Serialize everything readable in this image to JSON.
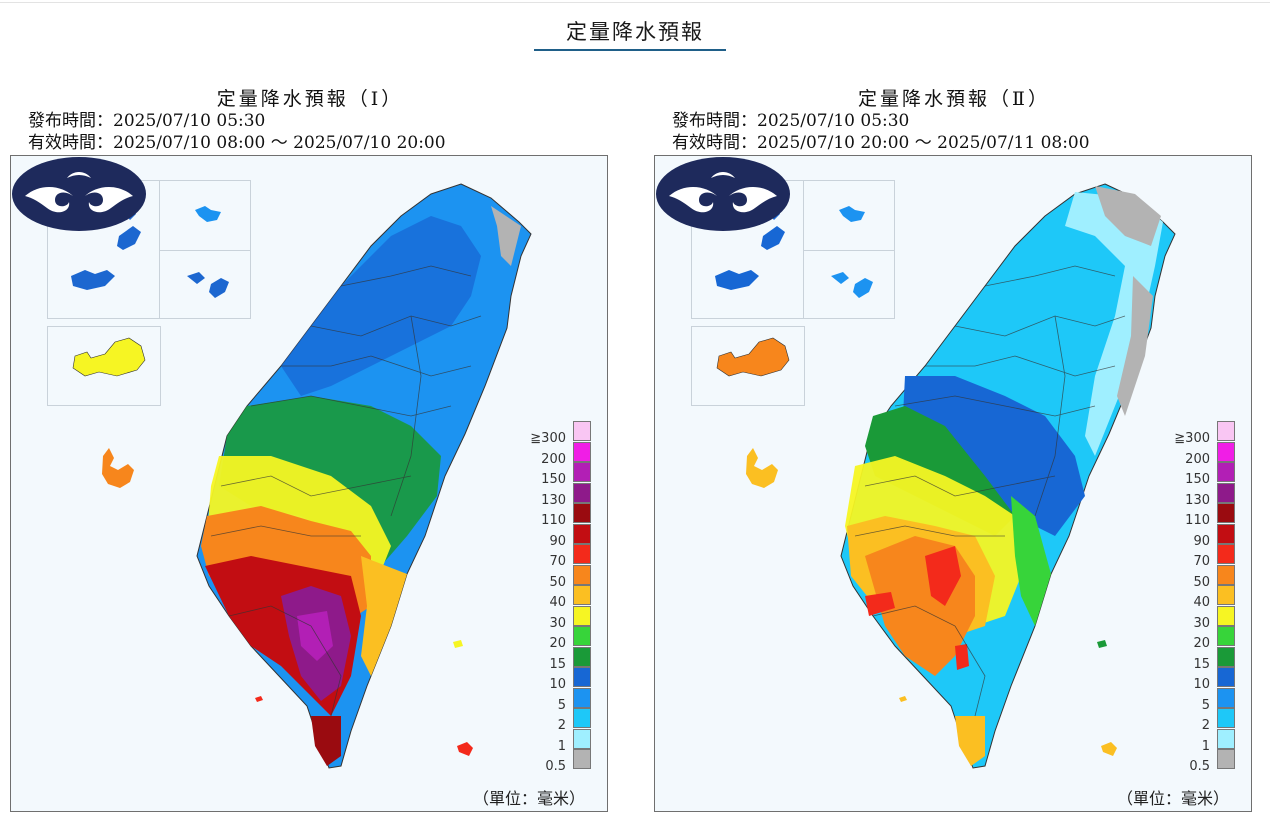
{
  "page": {
    "title": "定量降水預報"
  },
  "panels": [
    {
      "title": "定量降水預報（Ⅰ）",
      "issue_time": "發布時間：2025/07/10 05:30",
      "valid_time": "有效時間：2025/07/10 08:00 ～ 2025/07/10 20:00",
      "unit": "（單位：毫米）"
    },
    {
      "title": "定量降水預報（Ⅱ）",
      "issue_time": "發布時間：2025/07/10 05:30",
      "valid_time": "有效時間：2025/07/10 20:00 ～ 2025/07/11 08:00",
      "unit": "（單位：毫米）"
    }
  ],
  "legend": [
    {
      "label": "≧300",
      "color": "#f9c6f3"
    },
    {
      "label": "200",
      "color": "#f01ee6"
    },
    {
      "label": "150",
      "color": "#b21fb5"
    },
    {
      "label": "130",
      "color": "#8e1a8a"
    },
    {
      "label": "110",
      "color": "#9a0b10"
    },
    {
      "label": "90",
      "color": "#c20d12"
    },
    {
      "label": "70",
      "color": "#f32a1b"
    },
    {
      "label": "50",
      "color": "#f7861c"
    },
    {
      "label": "40",
      "color": "#fbbf22"
    },
    {
      "label": "30",
      "color": "#f6f523"
    },
    {
      "label": "20",
      "color": "#37d43a"
    },
    {
      "label": "15",
      "color": "#1a9a38"
    },
    {
      "label": "10",
      "color": "#1767d4"
    },
    {
      "label": "5",
      "color": "#1c93f1"
    },
    {
      "label": "2",
      "color": "#1ec8f8"
    },
    {
      "label": "1",
      "color": "#9fefff"
    },
    {
      "label": "0.5",
      "color": "#b3b3b3"
    }
  ]
}
